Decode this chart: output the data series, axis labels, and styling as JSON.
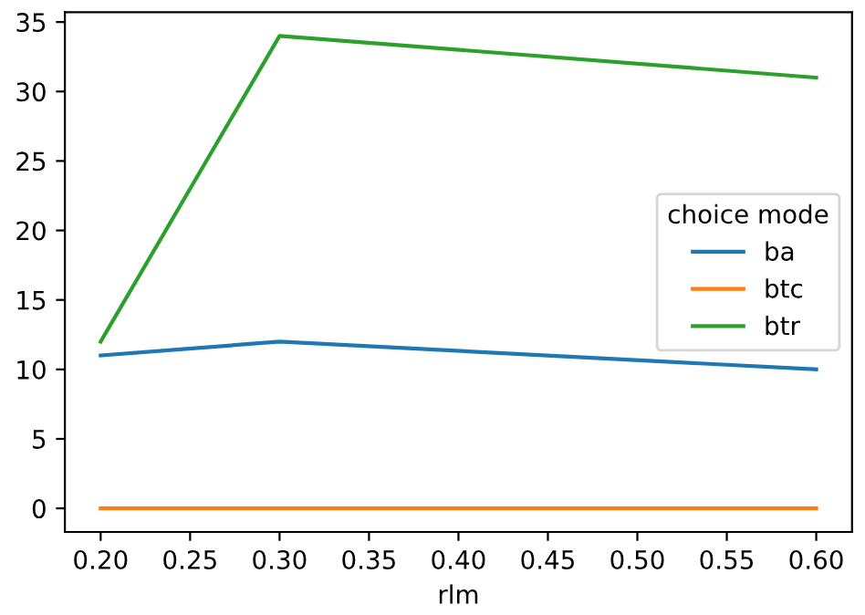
{
  "chart_data": {
    "type": "line",
    "xlabel": "rlm",
    "legend_title": "choice mode",
    "legend": "right",
    "x": [
      0.2,
      0.3,
      0.6
    ],
    "series": [
      {
        "name": "ba",
        "color": "#1f77b4",
        "values": [
          11,
          12,
          10
        ]
      },
      {
        "name": "btc",
        "color": "#ff7f0e",
        "values": [
          0,
          0,
          0
        ]
      },
      {
        "name": "btr",
        "color": "#2ca02c",
        "values": [
          12,
          34,
          31
        ]
      }
    ],
    "xlim": [
      0.18,
      0.62
    ],
    "ylim": [
      -1.7,
      35.7
    ],
    "xticks": [
      {
        "value": 0.2,
        "label": "0.20"
      },
      {
        "value": 0.25,
        "label": "0.25"
      },
      {
        "value": 0.3,
        "label": "0.30"
      },
      {
        "value": 0.35,
        "label": "0.35"
      },
      {
        "value": 0.4,
        "label": "0.40"
      },
      {
        "value": 0.45,
        "label": "0.45"
      },
      {
        "value": 0.5,
        "label": "0.50"
      },
      {
        "value": 0.55,
        "label": "0.55"
      },
      {
        "value": 0.6,
        "label": "0.60"
      }
    ],
    "yticks": [
      0,
      5,
      10,
      15,
      20,
      25,
      30,
      35
    ],
    "grid": false
  }
}
